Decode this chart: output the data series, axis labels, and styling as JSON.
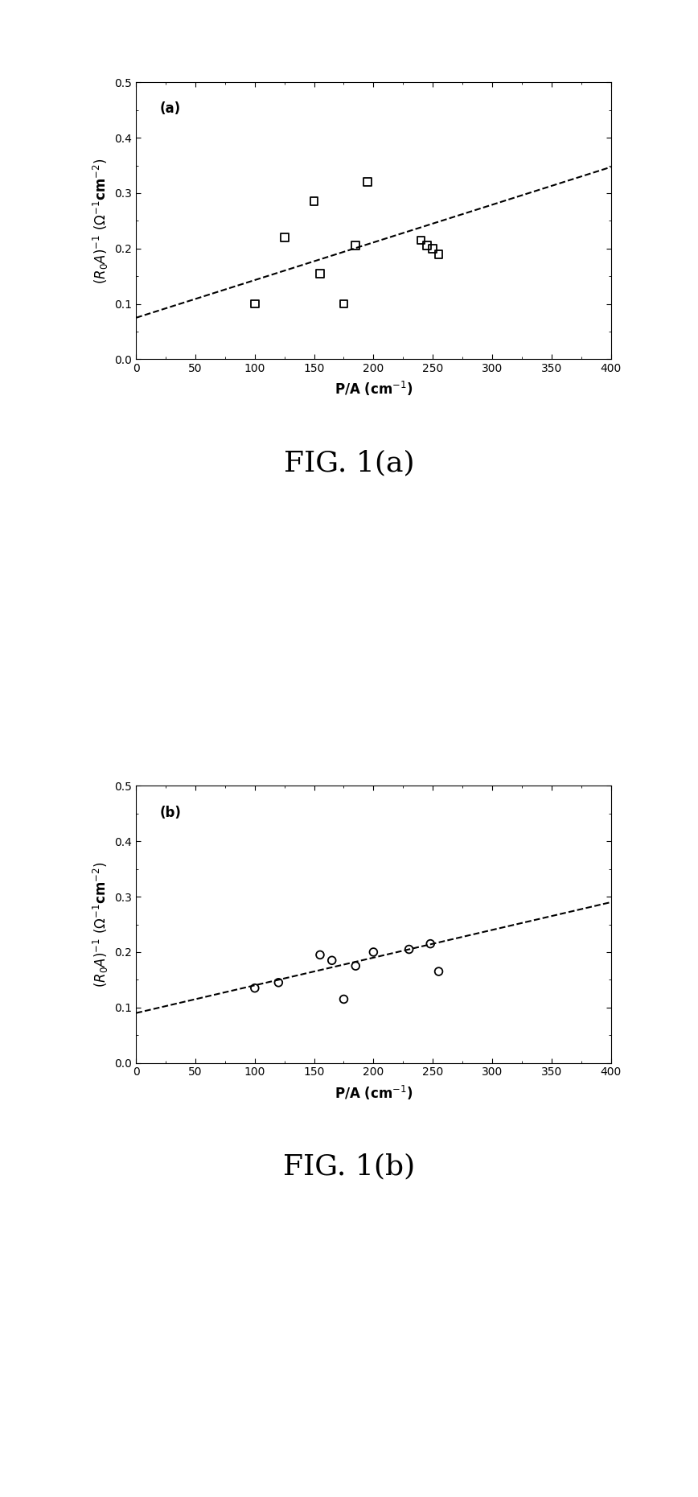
{
  "fig_a": {
    "label": "(a)",
    "scatter_x": [
      100,
      125,
      150,
      155,
      175,
      185,
      195,
      240,
      245,
      250,
      255
    ],
    "scatter_y": [
      0.1,
      0.22,
      0.285,
      0.155,
      0.1,
      0.205,
      0.32,
      0.215,
      0.205,
      0.2,
      0.19
    ],
    "line_x": [
      0,
      400
    ],
    "line_slope": 0.00068,
    "line_intercept": 0.075,
    "xlim": [
      0,
      400
    ],
    "ylim": [
      0.0,
      0.5
    ],
    "xticks": [
      0,
      50,
      100,
      150,
      200,
      250,
      300,
      350,
      400
    ],
    "yticks": [
      0.0,
      0.1,
      0.2,
      0.3,
      0.4,
      0.5
    ],
    "xlabel": "P/A (cm$^{-1}$)",
    "ylabel": "$(R_0A)^{-1}$ $({\\Omega}^{-1}$cm$^{-2})$",
    "caption": "FIG. 1(a)"
  },
  "fig_b": {
    "label": "(b)",
    "scatter_x": [
      100,
      120,
      155,
      165,
      175,
      185,
      200,
      230,
      248,
      255
    ],
    "scatter_y": [
      0.135,
      0.145,
      0.195,
      0.185,
      0.115,
      0.175,
      0.2,
      0.205,
      0.215,
      0.165
    ],
    "line_x": [
      0,
      400
    ],
    "line_slope": 0.0005,
    "line_intercept": 0.09,
    "xlim": [
      0,
      400
    ],
    "ylim": [
      0.0,
      0.5
    ],
    "xticks": [
      0,
      50,
      100,
      150,
      200,
      250,
      300,
      350,
      400
    ],
    "yticks": [
      0.0,
      0.1,
      0.2,
      0.3,
      0.4,
      0.5
    ],
    "xlabel": "P/A (cm$^{-1}$)",
    "ylabel": "$(R_0A)^{-1}$ $({\\Omega}^{-1}$cm$^{-2})$",
    "caption": "FIG. 1(b)"
  },
  "background_color": "#ffffff",
  "marker_color": "black",
  "line_color": "black",
  "marker_size": 7,
  "axis_label_fontsize": 12,
  "tick_fontsize": 10,
  "caption_fontsize": 26,
  "panel_label_fontsize": 12
}
